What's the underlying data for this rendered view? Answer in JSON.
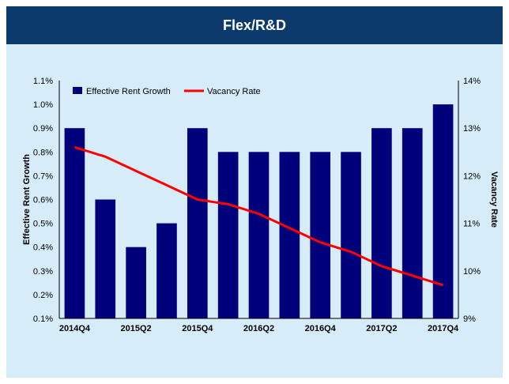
{
  "header": {
    "title": "Flex/R&D"
  },
  "colors": {
    "header_bg": "#0b3a6b",
    "panel_bg": "#d6edf9",
    "bar": "#00007a",
    "line": "#ff0000"
  },
  "chart_data": {
    "type": "bar",
    "title": "Flex/R&D",
    "categories": [
      "2014Q4",
      "2015Q1",
      "2015Q2",
      "2015Q3",
      "2015Q4",
      "2016Q1",
      "2016Q2",
      "2016Q3",
      "2016Q4",
      "2017Q1",
      "2017Q2",
      "2017Q3",
      "2017Q4"
    ],
    "x_tick_labels": [
      "2014Q4",
      "2015Q2",
      "2015Q4",
      "2016Q2",
      "2016Q4",
      "2017Q2",
      "2017Q4"
    ],
    "series": [
      {
        "name": "Effective Rent Growth",
        "type": "bar",
        "axis": "left",
        "values": [
          0.9,
          0.6,
          0.4,
          0.5,
          0.9,
          0.8,
          0.8,
          0.8,
          0.8,
          0.8,
          0.9,
          0.9,
          1.0
        ]
      },
      {
        "name": "Vacancy Rate",
        "type": "line",
        "axis": "right",
        "values": [
          12.6,
          12.4,
          12.1,
          11.8,
          11.5,
          11.4,
          11.2,
          10.9,
          10.6,
          10.4,
          10.1,
          9.9,
          9.7
        ]
      }
    ],
    "ylabel": "Effective Rent Growth",
    "ylim": [
      0.1,
      1.1
    ],
    "y_ticks": [
      "0.1%",
      "0.2%",
      "0.3%",
      "0.4%",
      "0.5%",
      "0.6%",
      "0.7%",
      "0.8%",
      "0.9%",
      "1.0%",
      "1.1%"
    ],
    "y2label": "Vacancy Rate",
    "y2lim": [
      9,
      14
    ],
    "y2_ticks": [
      "9%",
      "10%",
      "11%",
      "12%",
      "13%",
      "14%"
    ],
    "legend": "top-left"
  }
}
